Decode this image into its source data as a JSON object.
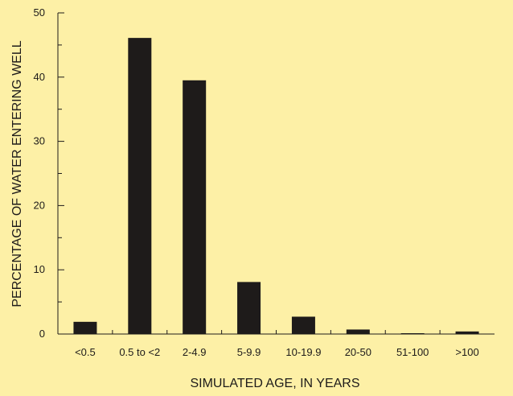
{
  "chart_data": {
    "type": "bar",
    "title": "",
    "xlabel": "SIMULATED AGE, IN YEARS",
    "ylabel": "PERCENTAGE OF WATER ENTERING WELL",
    "categories": [
      "<0.5",
      "0.5 to <2",
      "2-4.9",
      "5-9.9",
      "10-19.9",
      "20-50",
      "51-100",
      ">100"
    ],
    "values": [
      1.9,
      46.1,
      39.5,
      8.1,
      2.7,
      0.7,
      0.1,
      0.4
    ],
    "ylim": [
      0,
      50
    ],
    "yticks": [
      "0",
      "10",
      "20",
      "30",
      "40",
      "50"
    ],
    "grid": false,
    "legend": "none",
    "colors": {
      "background": "#fdf0a6",
      "bar": "#1e1b1a",
      "axis": "#1e1b1a"
    }
  }
}
